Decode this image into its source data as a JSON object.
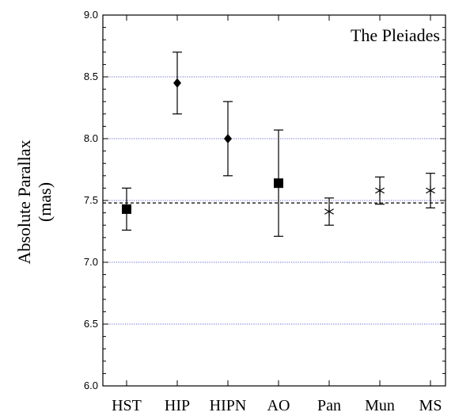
{
  "chart_data": {
    "type": "scatter",
    "title": "The Pleiades",
    "ylabel_line1": "Absolute Parallax",
    "ylabel_line2": "(mas)",
    "xlabel": "",
    "categories": [
      "HST",
      "HIP",
      "HIPN",
      "AO",
      "Pan",
      "Mun",
      "MS"
    ],
    "points": [
      {
        "category": "HST",
        "value": 7.43,
        "err_low": 7.26,
        "err_high": 7.6,
        "marker": "square"
      },
      {
        "category": "HIP",
        "value": 8.45,
        "err_low": 8.2,
        "err_high": 8.7,
        "marker": "diamond"
      },
      {
        "category": "HIPN",
        "value": 8.0,
        "err_low": 7.7,
        "err_high": 8.3,
        "marker": "diamond"
      },
      {
        "category": "AO",
        "value": 7.64,
        "err_low": 7.21,
        "err_high": 8.07,
        "marker": "square"
      },
      {
        "category": "Pan",
        "value": 7.41,
        "err_low": 7.3,
        "err_high": 7.52,
        "marker": "asterisk"
      },
      {
        "category": "Mun",
        "value": 7.58,
        "err_low": 7.47,
        "err_high": 7.69,
        "marker": "asterisk"
      },
      {
        "category": "MS",
        "value": 7.58,
        "err_low": 7.44,
        "err_high": 7.72,
        "marker": "asterisk"
      }
    ],
    "reference_line": 7.48,
    "ylim": [
      6.0,
      9.0
    ],
    "yticks": [
      "6.0",
      "6.5",
      "7.0",
      "7.5",
      "8.0",
      "8.5",
      "9.0"
    ],
    "grid": "horizontal dotted at labeled ticks",
    "colors": {
      "grid": "#3333cc",
      "marks": "#000000"
    }
  }
}
